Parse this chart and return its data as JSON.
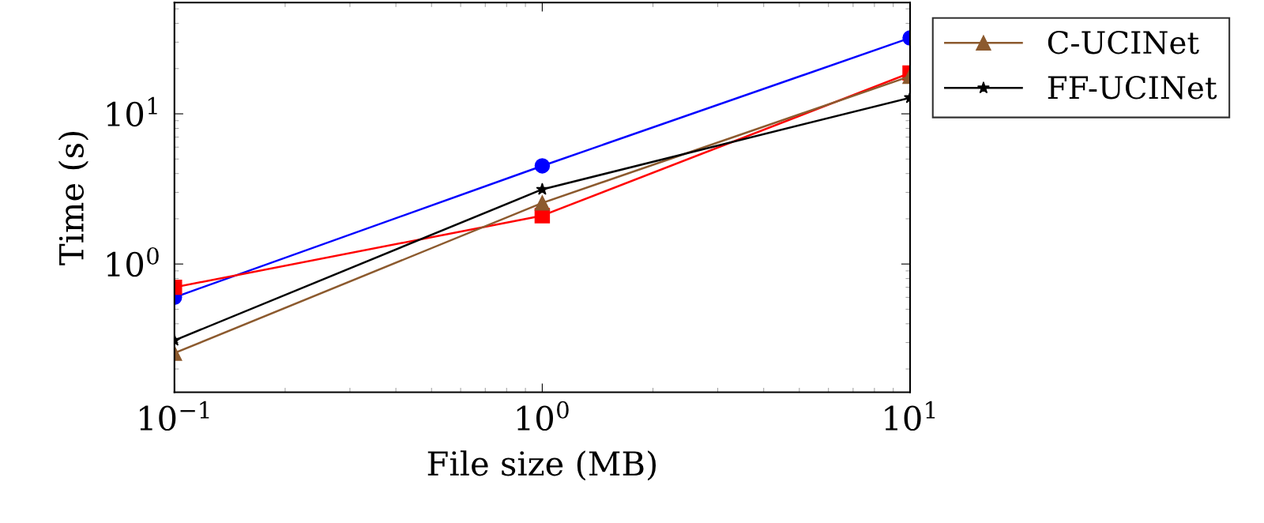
{
  "chart_data": {
    "type": "line",
    "xlabel": "File size (MB)",
    "ylabel": "Time (s)",
    "log": "xy",
    "x": [
      0.1,
      1,
      10
    ],
    "series": [
      {
        "color": "#0000ff",
        "marker": "circle",
        "values": [
          0.6,
          4.5,
          32
        ]
      },
      {
        "color": "#ff0000",
        "marker": "square",
        "values": [
          0.7,
          2.1,
          18.7
        ]
      },
      {
        "name": "C-UCINet",
        "color": "#8c5a2e",
        "marker": "triangle",
        "values": [
          0.255,
          2.55,
          17.8
        ]
      },
      {
        "name": "FF-UCINet",
        "color": "#000000",
        "marker": "star",
        "values": [
          0.31,
          3.14,
          12.8
        ]
      }
    ],
    "xlim": [
      0.1,
      10
    ],
    "ylim": [
      0.14,
      55
    ],
    "xticks": [
      {
        "value": 0.1,
        "label": "10$^{−1}$"
      },
      {
        "value": 1,
        "label": "10$^{0}$"
      },
      {
        "value": 10,
        "label": "10$^{1}$"
      }
    ],
    "yticks": [
      {
        "value": 1,
        "label": "10$^{0}$"
      },
      {
        "value": 10,
        "label": "10$^{1}$"
      }
    ],
    "grid": false,
    "legend": "right",
    "line_style": "solid"
  }
}
